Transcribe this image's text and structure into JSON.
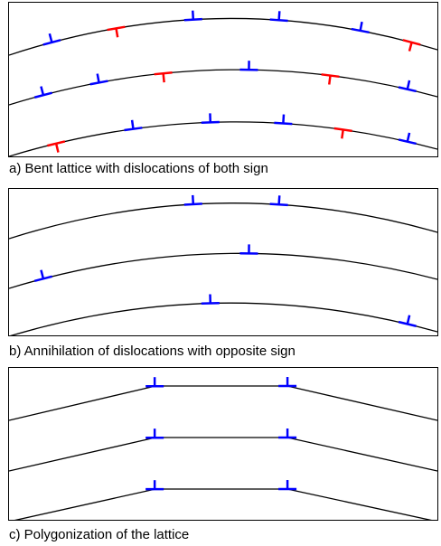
{
  "colors": {
    "line": "#000000",
    "positive_dislocation": "#0000ff",
    "negative_dislocation": "#ff0000"
  },
  "panels": [
    {
      "id": "a",
      "caption": "a) Bent lattice with dislocations of both sign",
      "lattice": "curved",
      "dislocations": [
        [
          {
            "t": 0.1,
            "sign": "positive"
          },
          {
            "t": 0.25,
            "sign": "negative"
          },
          {
            "t": 0.43,
            "sign": "positive"
          },
          {
            "t": 0.63,
            "sign": "positive"
          },
          {
            "t": 0.82,
            "sign": "positive"
          },
          {
            "t": 0.94,
            "sign": "negative"
          }
        ],
        [
          {
            "t": 0.08,
            "sign": "positive"
          },
          {
            "t": 0.21,
            "sign": "positive"
          },
          {
            "t": 0.36,
            "sign": "negative"
          },
          {
            "t": 0.56,
            "sign": "positive"
          },
          {
            "t": 0.75,
            "sign": "negative"
          },
          {
            "t": 0.93,
            "sign": "positive"
          }
        ],
        [
          {
            "t": 0.11,
            "sign": "negative"
          },
          {
            "t": 0.29,
            "sign": "positive"
          },
          {
            "t": 0.47,
            "sign": "positive"
          },
          {
            "t": 0.64,
            "sign": "positive"
          },
          {
            "t": 0.78,
            "sign": "negative"
          },
          {
            "t": 0.93,
            "sign": "positive"
          }
        ]
      ]
    },
    {
      "id": "b",
      "caption": "b) Annihilation of dislocations with opposite sign",
      "lattice": "curved",
      "dislocations": [
        [
          {
            "t": 0.43,
            "sign": "positive"
          },
          {
            "t": 0.63,
            "sign": "positive"
          }
        ],
        [
          {
            "t": 0.08,
            "sign": "positive"
          },
          {
            "t": 0.56,
            "sign": "positive"
          }
        ],
        [
          {
            "t": 0.47,
            "sign": "positive"
          },
          {
            "t": 0.93,
            "sign": "positive"
          }
        ]
      ]
    },
    {
      "id": "c",
      "caption": "c) Polygonization of the lattice",
      "lattice": "polygonal",
      "dislocations": [
        [
          {
            "t": 0.34,
            "sign": "positive"
          },
          {
            "t": 0.65,
            "sign": "positive"
          }
        ],
        [
          {
            "t": 0.34,
            "sign": "positive"
          },
          {
            "t": 0.65,
            "sign": "positive"
          }
        ],
        [
          {
            "t": 0.34,
            "sign": "positive"
          },
          {
            "t": 0.65,
            "sign": "positive"
          }
        ]
      ]
    }
  ]
}
